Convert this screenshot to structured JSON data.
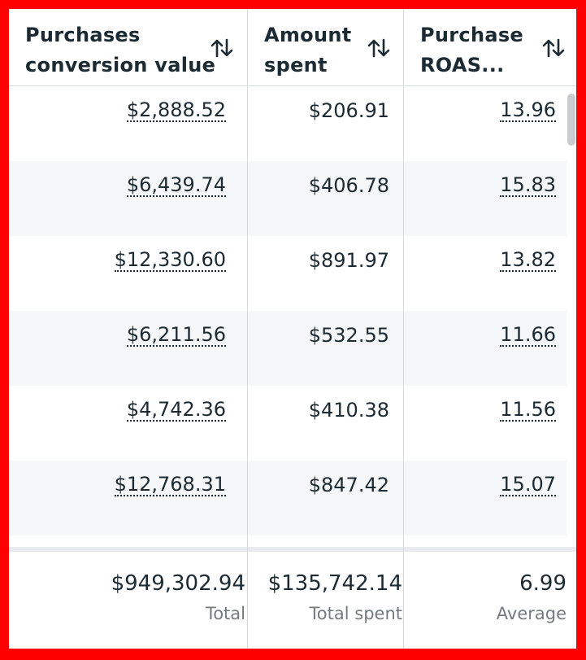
{
  "columns": [
    {
      "title": "Purchases\nconversion value"
    },
    {
      "title": "Amount\nspent"
    },
    {
      "title": "Purchase\nROAS..."
    }
  ],
  "rows": [
    {
      "conversion_value": "$2,888.52",
      "amount_spent": "$206.91",
      "roas": "13.96"
    },
    {
      "conversion_value": "$6,439.74",
      "amount_spent": "$406.78",
      "roas": "15.83"
    },
    {
      "conversion_value": "$12,330.60",
      "amount_spent": "$891.97",
      "roas": "13.82"
    },
    {
      "conversion_value": "$6,211.56",
      "amount_spent": "$532.55",
      "roas": "11.66"
    },
    {
      "conversion_value": "$4,742.36",
      "amount_spent": "$410.38",
      "roas": "11.56"
    },
    {
      "conversion_value": "$12,768.31",
      "amount_spent": "$847.42",
      "roas": "15.07"
    }
  ],
  "footer": {
    "conversion_value": {
      "value": "$949,302.94",
      "label": "Total"
    },
    "amount_spent": {
      "value": "$135,742.14",
      "label": "Total spent"
    },
    "roas": {
      "value": "6.99",
      "label": "Average"
    }
  },
  "colors": {
    "frame": "#ff0000",
    "alt_row": "#f4f6f8",
    "divider": "#d4d9dc"
  }
}
